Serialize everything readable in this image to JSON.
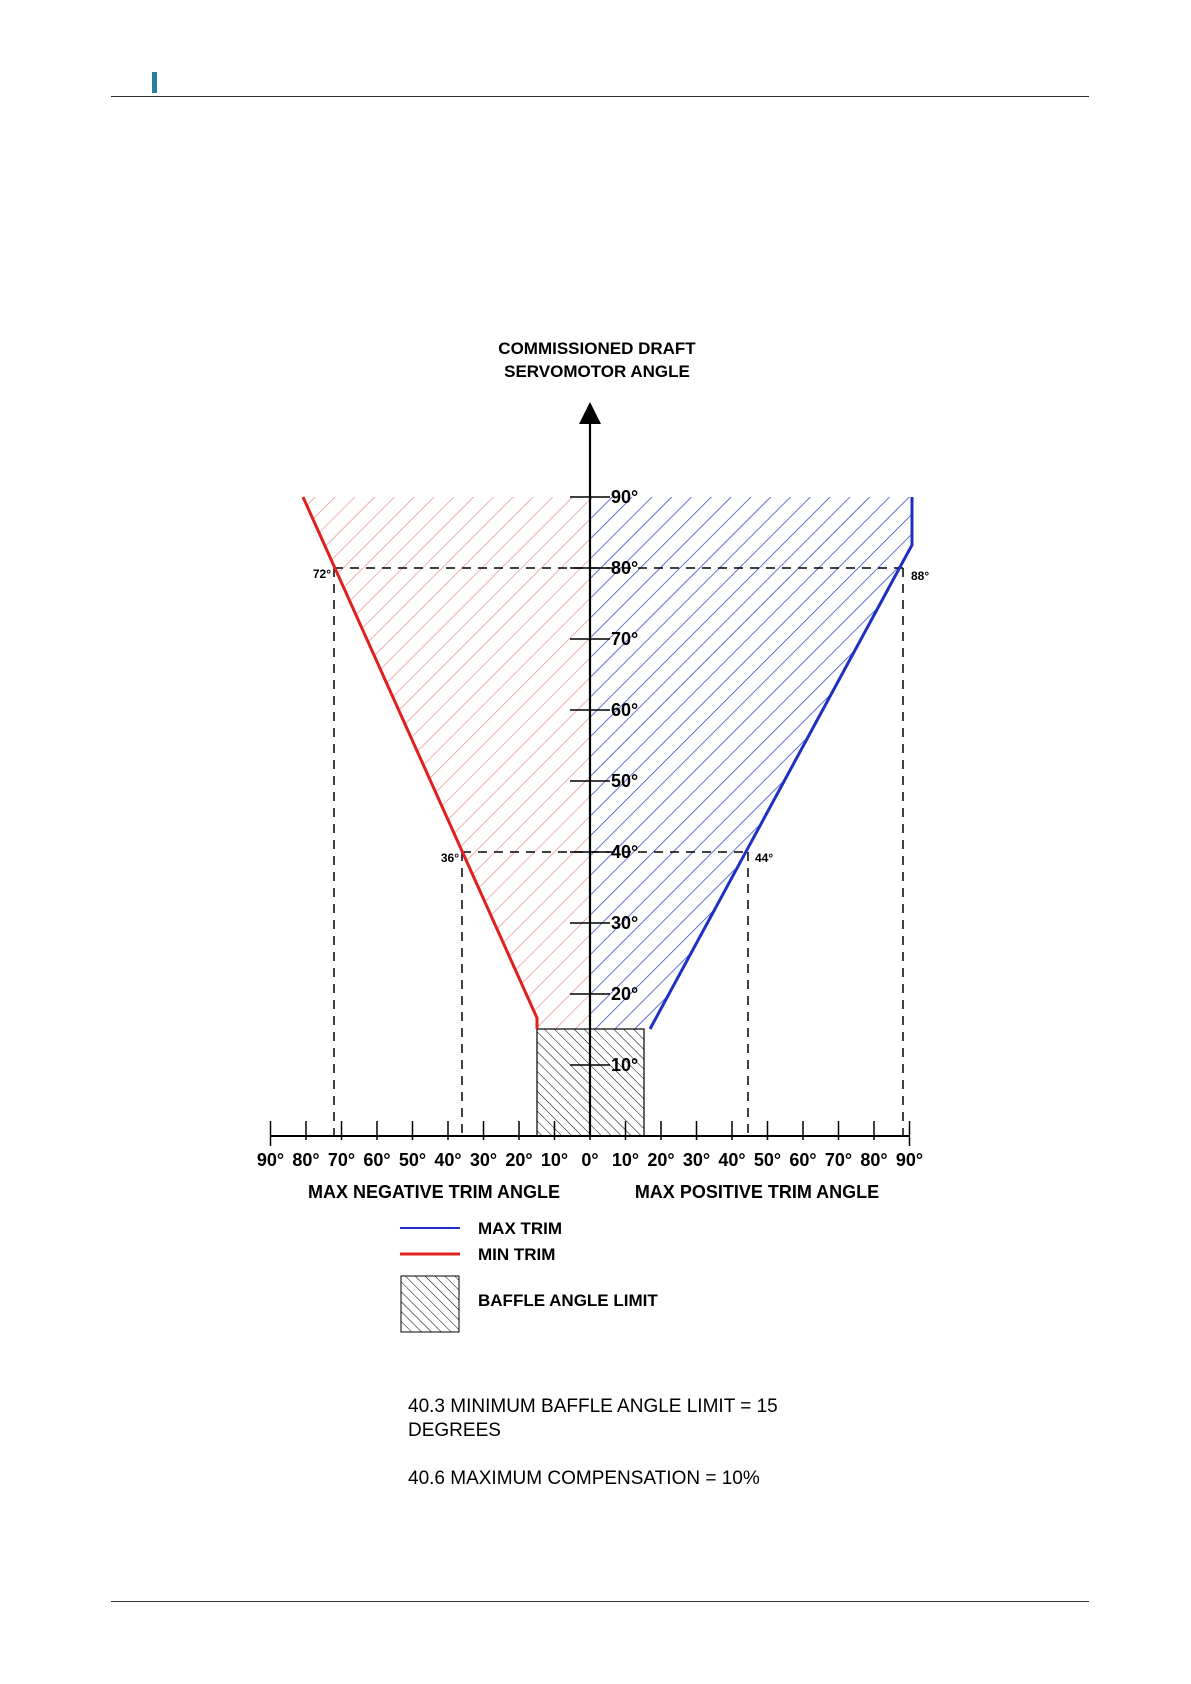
{
  "header": {
    "accent_color": "#2a7f9e"
  },
  "diagram": {
    "title_line1": "COMMISSIONED DRAFT",
    "title_line2": "SERVOMOTOR ANGLE",
    "y_ticks": [
      "10°",
      "20°",
      "30°",
      "40°",
      "50°",
      "60°",
      "70°",
      "80°",
      "90°"
    ],
    "x_ticks_negative": [
      "90°",
      "80°",
      "70°",
      "60°",
      "50°",
      "40°",
      "30°",
      "20°",
      "10°"
    ],
    "x_tick_zero": "0°",
    "x_ticks_positive": [
      "10°",
      "20°",
      "30°",
      "40°",
      "50°",
      "60°",
      "70°",
      "80°",
      "90°"
    ],
    "x_label_negative": "MAX NEGATIVE TRIM ANGLE",
    "x_label_positive": "MAX POSITIVE TRIM ANGLE",
    "point_labels": {
      "min_at_80": "72°",
      "max_at_80": "88°",
      "min_at_40": "36°",
      "max_at_40": "44°"
    },
    "colors": {
      "max_trim": "#1f2fc4",
      "min_trim": "#e0201e",
      "min_hatch": "#e88888",
      "max_hatch": "#3344cc"
    }
  },
  "chart_data": {
    "type": "line",
    "ylabel": "COMMISSIONED DRAFT SERVOMOTOR ANGLE",
    "xlabel_negative": "MAX NEGATIVE TRIM ANGLE",
    "xlabel_positive": "MAX POSITIVE TRIM ANGLE",
    "xlim": [
      -90,
      90
    ],
    "ylim": [
      0,
      90
    ],
    "series": [
      {
        "name": "MAX TRIM",
        "points": [
          [
            16,
            15
          ],
          [
            44,
            40
          ],
          [
            88,
            80
          ],
          [
            90,
            82
          ],
          [
            90,
            90
          ]
        ]
      },
      {
        "name": "MIN TRIM",
        "points": [
          [
            -15,
            15
          ],
          [
            -15,
            17
          ],
          [
            -36,
            40
          ],
          [
            -72,
            80
          ],
          [
            -81,
            90
          ]
        ]
      },
      {
        "name": "BAFFLE ANGLE LIMIT",
        "points": [
          [
            -15,
            0
          ],
          [
            15,
            0
          ],
          [
            15,
            15
          ],
          [
            -15,
            15
          ]
        ]
      }
    ]
  },
  "legend": {
    "items": [
      {
        "label": "MAX TRIM"
      },
      {
        "label": "MIN TRIM"
      },
      {
        "label": "BAFFLE ANGLE LIMIT"
      }
    ]
  },
  "notes": {
    "line1": "40.3 MINIMUM BAFFLE ANGLE LIMIT = 15 DEGREES",
    "line2": "40.6 MAXIMUM COMPENSATION = 10%"
  }
}
